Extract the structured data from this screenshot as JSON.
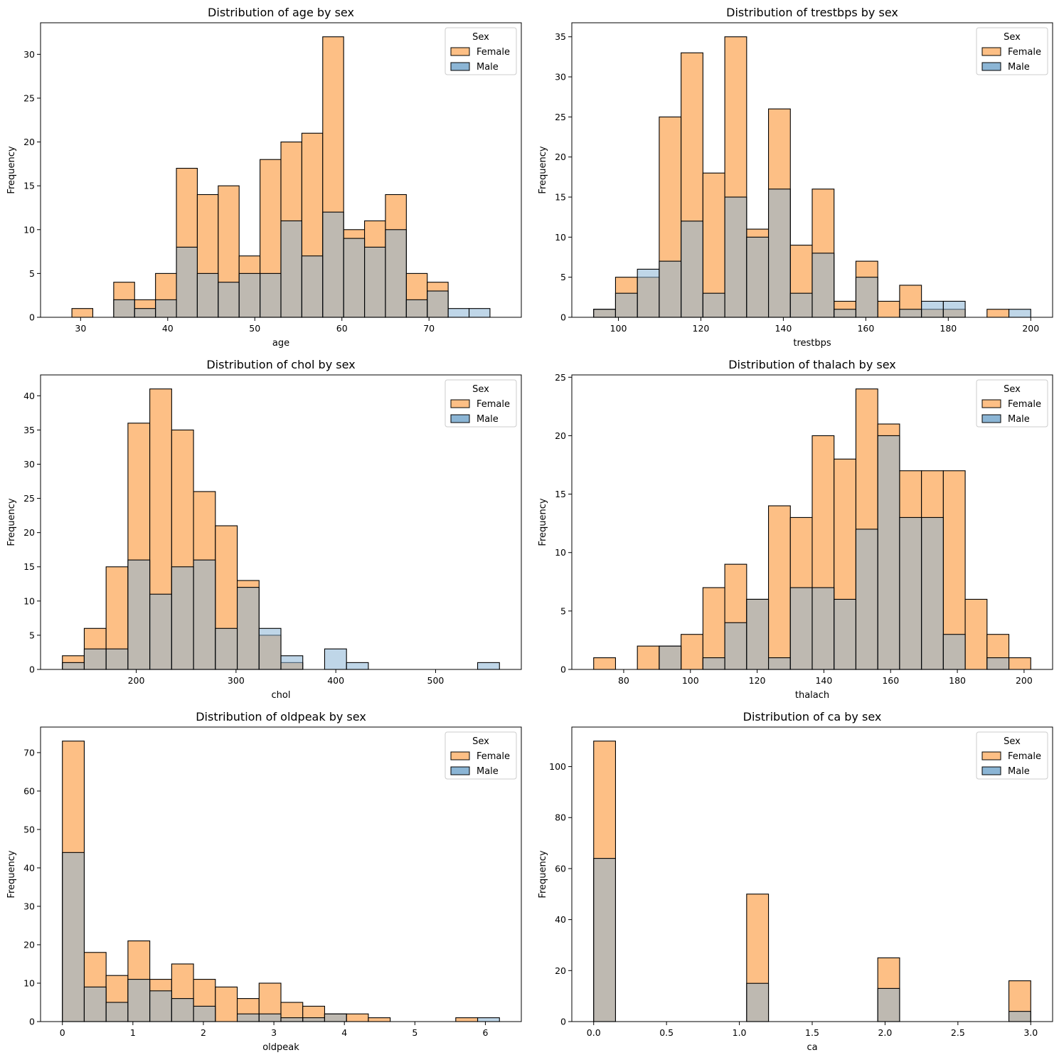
{
  "legend": {
    "title": "Sex",
    "female_label": "Female",
    "male_label": "Male"
  },
  "colors": {
    "female": "#fdbf85",
    "male": "#8bb5d5",
    "overlap": "#8d9a9f",
    "edge": "#000000"
  },
  "chart_data": [
    {
      "type": "histogram",
      "title": "Distribution of age by sex",
      "xlabel": "age",
      "ylabel": "Frequency",
      "bin_start": 29,
      "bin_width": 2.4,
      "xlim": [
        25.4,
        80.6
      ],
      "ylim": [
        0,
        33.6
      ],
      "xticks": [
        30,
        40,
        50,
        60,
        70
      ],
      "yticks": [
        0,
        5,
        10,
        15,
        20,
        25,
        30
      ],
      "series": [
        {
          "name": "Female",
          "values": [
            1,
            0,
            4,
            2,
            5,
            17,
            14,
            15,
            7,
            18,
            20,
            21,
            32,
            10,
            11,
            14,
            5,
            4,
            0,
            0
          ]
        },
        {
          "name": "Male",
          "values": [
            0,
            0,
            2,
            1,
            2,
            8,
            5,
            4,
            5,
            5,
            11,
            7,
            12,
            9,
            8,
            10,
            2,
            3,
            1,
            1
          ]
        }
      ]
    },
    {
      "type": "histogram",
      "title": "Distribution of trestbps by sex",
      "xlabel": "trestbps",
      "ylabel": "Frequency",
      "bin_start": 94,
      "bin_width": 5.3,
      "xlim": [
        88.7,
        205.3
      ],
      "ylim": [
        0,
        36.75
      ],
      "xticks": [
        100,
        120,
        140,
        160,
        180,
        200
      ],
      "yticks": [
        0,
        5,
        10,
        15,
        20,
        25,
        30,
        35
      ],
      "series": [
        {
          "name": "Female",
          "values": [
            1,
            5,
            5,
            25,
            33,
            18,
            35,
            11,
            26,
            9,
            16,
            2,
            7,
            2,
            4,
            1,
            1,
            0,
            1,
            0
          ]
        },
        {
          "name": "Male",
          "values": [
            1,
            3,
            6,
            7,
            12,
            3,
            15,
            10,
            16,
            3,
            8,
            1,
            5,
            0,
            1,
            2,
            2,
            0,
            0,
            1
          ]
        }
      ]
    },
    {
      "type": "histogram",
      "title": "Distribution of chol by sex",
      "xlabel": "chol",
      "ylabel": "Frequency",
      "bin_start": 126,
      "bin_width": 21.9,
      "xlim": [
        104.1,
        585.9
      ],
      "ylim": [
        0,
        43.05
      ],
      "xticks": [
        200,
        300,
        400,
        500
      ],
      "yticks": [
        0,
        5,
        10,
        15,
        20,
        25,
        30,
        35,
        40
      ],
      "series": [
        {
          "name": "Female",
          "values": [
            2,
            6,
            15,
            36,
            41,
            35,
            26,
            21,
            13,
            5,
            1,
            0,
            0,
            0,
            0,
            0,
            0,
            0,
            0,
            0
          ]
        },
        {
          "name": "Male",
          "values": [
            1,
            3,
            3,
            16,
            11,
            15,
            16,
            6,
            12,
            6,
            2,
            0,
            3,
            1,
            0,
            0,
            0,
            0,
            0,
            1
          ]
        }
      ]
    },
    {
      "type": "histogram",
      "title": "Distribution of thalach by sex",
      "xlabel": "thalach",
      "ylabel": "Frequency",
      "bin_start": 71,
      "bin_width": 6.55,
      "xlim": [
        64.45,
        208.55
      ],
      "ylim": [
        0,
        25.2
      ],
      "xticks": [
        80,
        100,
        120,
        140,
        160,
        180,
        200
      ],
      "yticks": [
        0,
        5,
        10,
        15,
        20,
        25
      ],
      "series": [
        {
          "name": "Female",
          "values": [
            1,
            0,
            2,
            2,
            3,
            7,
            9,
            6,
            14,
            13,
            20,
            18,
            24,
            21,
            17,
            17,
            17,
            6,
            3,
            1
          ]
        },
        {
          "name": "Male",
          "values": [
            0,
            0,
            0,
            2,
            0,
            1,
            4,
            6,
            1,
            7,
            7,
            6,
            12,
            20,
            13,
            13,
            3,
            0,
            1,
            0
          ]
        }
      ]
    },
    {
      "type": "histogram",
      "title": "Distribution of oldpeak by sex",
      "xlabel": "oldpeak",
      "ylabel": "Frequency",
      "bin_start": 0,
      "bin_width": 0.31,
      "xlim": [
        -0.31,
        6.51
      ],
      "ylim": [
        0,
        76.65
      ],
      "xticks": [
        0,
        1,
        2,
        3,
        4,
        5,
        6
      ],
      "yticks": [
        0,
        10,
        20,
        30,
        40,
        50,
        60,
        70
      ],
      "series": [
        {
          "name": "Female",
          "values": [
            73,
            18,
            12,
            21,
            11,
            15,
            11,
            9,
            6,
            10,
            5,
            4,
            2,
            2,
            1,
            0,
            0,
            0,
            1,
            0
          ]
        },
        {
          "name": "Male",
          "values": [
            44,
            9,
            5,
            11,
            8,
            6,
            4,
            0,
            2,
            2,
            1,
            1,
            2,
            0,
            0,
            0,
            0,
            0,
            0,
            1
          ]
        }
      ]
    },
    {
      "type": "histogram",
      "title": "Distribution of ca by sex",
      "xlabel": "ca",
      "ylabel": "Frequency",
      "bin_start": 0,
      "bin_width": 0.15,
      "xlim": [
        -0.15,
        3.15
      ],
      "ylim": [
        0,
        115.5
      ],
      "xticks": [
        0.0,
        0.5,
        1.0,
        1.5,
        2.0,
        2.5,
        3.0
      ],
      "yticks": [
        0,
        20,
        40,
        60,
        80,
        100
      ],
      "tick_decimals": 1,
      "series": [
        {
          "name": "Female",
          "values": [
            110,
            0,
            0,
            0,
            0,
            0,
            0,
            50,
            0,
            0,
            0,
            0,
            0,
            25,
            0,
            0,
            0,
            0,
            0,
            16
          ]
        },
        {
          "name": "Male",
          "values": [
            64,
            0,
            0,
            0,
            0,
            0,
            0,
            15,
            0,
            0,
            0,
            0,
            0,
            13,
            0,
            0,
            0,
            0,
            0,
            4
          ]
        }
      ]
    }
  ]
}
